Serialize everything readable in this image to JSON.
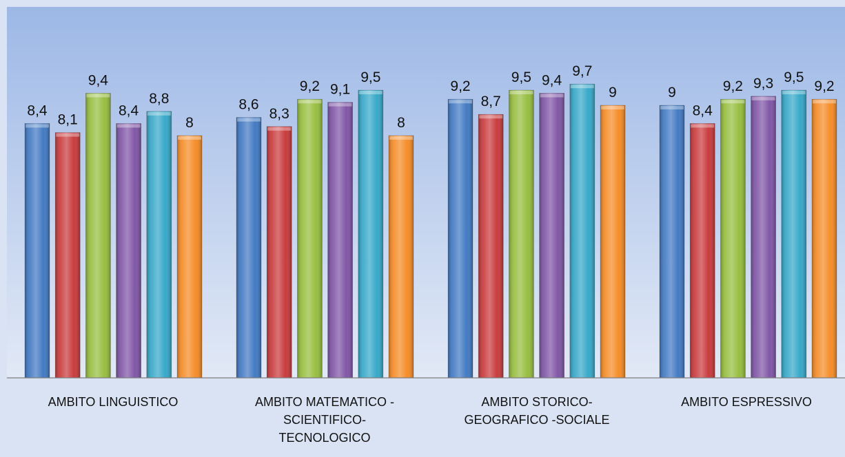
{
  "chart_data": {
    "type": "bar",
    "categories": [
      [
        "AMBITO LINGUISTICO"
      ],
      [
        "AMBITO MATEMATICO -",
        "SCIENTIFICO-",
        "TECNOLOGICO"
      ],
      [
        "AMBITO STORICO-",
        "GEOGRAFICO -SOCIALE"
      ],
      [
        "AMBITO ESPRESSIVO"
      ]
    ],
    "series": [
      {
        "color": "#3f78c2",
        "values": [
          8.4,
          8.6,
          9.2,
          9.0
        ]
      },
      {
        "color": "#c8383a",
        "values": [
          8.1,
          8.3,
          8.7,
          8.4
        ]
      },
      {
        "color": "#95bd3c",
        "values": [
          9.4,
          9.2,
          9.5,
          9.2
        ]
      },
      {
        "color": "#7e53a5",
        "values": [
          8.4,
          9.1,
          9.4,
          9.3
        ]
      },
      {
        "color": "#33a7c8",
        "values": [
          8.8,
          9.5,
          9.7,
          9.5
        ]
      },
      {
        "color": "#f58a24",
        "values": [
          8.0,
          8.0,
          9.0,
          9.2
        ]
      }
    ],
    "data_labels": [
      [
        "8,4",
        "8,6",
        "9,2",
        "9"
      ],
      [
        "8,1",
        "8,3",
        "8,7",
        "8,4"
      ],
      [
        "9,4",
        "9,2",
        "9,5",
        "9,2"
      ],
      [
        "8,4",
        "9,1",
        "9,4",
        "9,3"
      ],
      [
        "8,8",
        "9,5",
        "9,7",
        "9,5"
      ],
      [
        "8",
        "8",
        "9",
        "9,2"
      ]
    ],
    "ylim": [
      0,
      10
    ],
    "legend": "none",
    "grid": false,
    "background_gradient": [
      "#9db8e6",
      "#e2e9f6"
    ]
  }
}
